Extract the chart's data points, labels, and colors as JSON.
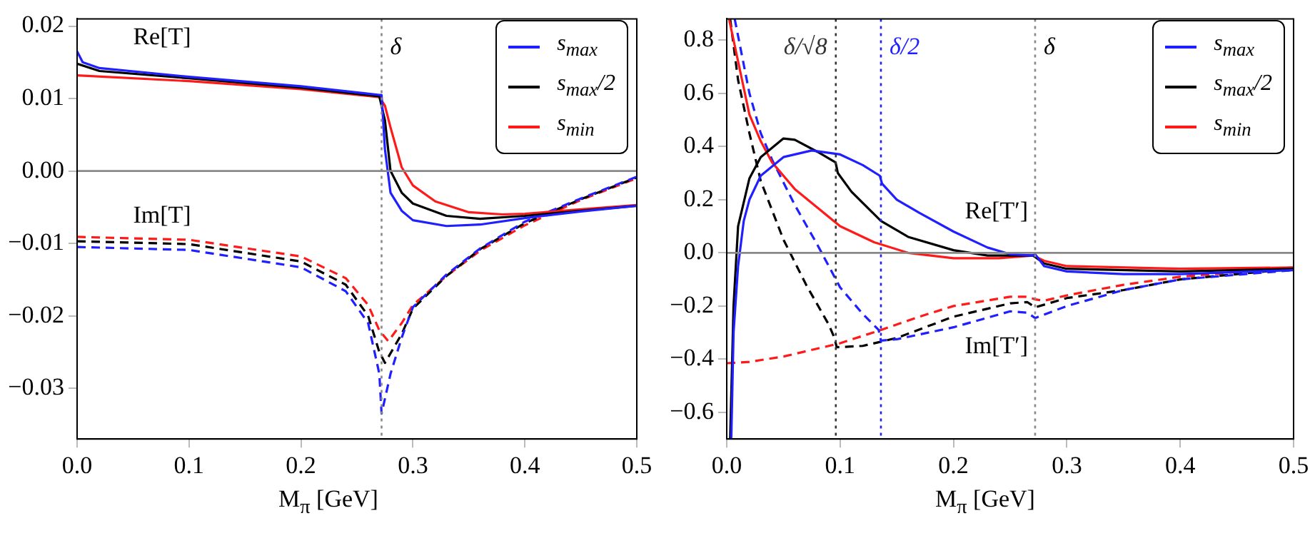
{
  "chart_data": [
    {
      "type": "line",
      "xlabel": "M$_{π}$ [GeV]",
      "xlim": [
        0,
        0.5
      ],
      "xticks": [
        {
          "value": 0,
          "label": "0.0"
        },
        0.1,
        0.2,
        0.3,
        0.4,
        0.5
      ],
      "ylim": [
        -0.037,
        0.021
      ],
      "yticks": [
        {
          "value": -0.03,
          "label": "−0.03"
        },
        {
          "value": -0.02,
          "label": "−0.02"
        },
        {
          "value": -0.01,
          "label": "−0.01"
        },
        {
          "value": 0,
          "label": "0.00"
        },
        {
          "value": 0.01,
          "label": "0.01"
        },
        {
          "value": 0.02,
          "label": "0.02"
        }
      ],
      "grid": false,
      "legend": "top right",
      "marker": "none",
      "annotations": [
        "Re[T]",
        "Im[T]"
      ],
      "ref_lines": [
        {
          "axis": "x",
          "value": 0.272,
          "label": "δ",
          "color": "#888888",
          "line_style": "dotted"
        },
        {
          "axis": "y",
          "value": 0,
          "color": "#888888",
          "line_style": "solid"
        }
      ],
      "series": [
        {
          "name": "s$_{max}$",
          "color": "#1f1fff",
          "line_style": "solid",
          "x": [
            0,
            0.005,
            0.02,
            0.1,
            0.2,
            0.27,
            0.272,
            0.275,
            0.28,
            0.29,
            0.3,
            0.33,
            0.36,
            0.4,
            0.45,
            0.5
          ],
          "values": [
            0.0165,
            0.015,
            0.0142,
            0.013,
            0.0117,
            0.0105,
            0.0105,
            0.003,
            -0.003,
            -0.0055,
            -0.0068,
            -0.0076,
            -0.0074,
            -0.0065,
            -0.0056,
            -0.0048
          ]
        },
        {
          "name": "s$_{max}$/2",
          "color": "#000000",
          "line_style": "solid",
          "x": [
            0,
            0.02,
            0.1,
            0.2,
            0.27,
            0.275,
            0.28,
            0.29,
            0.3,
            0.33,
            0.36,
            0.4,
            0.45,
            0.5
          ],
          "values": [
            0.0148,
            0.0138,
            0.0128,
            0.0115,
            0.0103,
            0.007,
            0,
            -0.003,
            -0.0045,
            -0.0062,
            -0.0066,
            -0.0062,
            -0.0055,
            -0.0048
          ]
        },
        {
          "name": "s$_{min}$",
          "color": "#ff1a1a",
          "line_style": "solid",
          "x": [
            0,
            0.1,
            0.2,
            0.27,
            0.275,
            0.28,
            0.29,
            0.3,
            0.32,
            0.35,
            0.38,
            0.4,
            0.45,
            0.5
          ],
          "values": [
            0.0132,
            0.0124,
            0.0113,
            0.0102,
            0.009,
            0.006,
            0.0005,
            -0.002,
            -0.0042,
            -0.0057,
            -0.006,
            -0.0059,
            -0.0053,
            -0.0047
          ]
        },
        {
          "color": "#1f1fff",
          "line_style": "dashed",
          "x": [
            0,
            0.1,
            0.2,
            0.24,
            0.26,
            0.27,
            0.272,
            0.28,
            0.29,
            0.3,
            0.33,
            0.36,
            0.4,
            0.45,
            0.5
          ],
          "values": [
            -0.0105,
            -0.0109,
            -0.0133,
            -0.0166,
            -0.021,
            -0.028,
            -0.0335,
            -0.028,
            -0.023,
            -0.0188,
            -0.0143,
            -0.0107,
            -0.007,
            -0.0038,
            -0.0008
          ]
        },
        {
          "color": "#000000",
          "line_style": "dashed",
          "x": [
            0,
            0.1,
            0.2,
            0.24,
            0.26,
            0.27,
            0.275,
            0.29,
            0.3,
            0.33,
            0.36,
            0.4,
            0.45,
            0.5
          ],
          "values": [
            -0.0097,
            -0.0101,
            -0.0125,
            -0.0157,
            -0.02,
            -0.025,
            -0.0265,
            -0.0225,
            -0.019,
            -0.0145,
            -0.0108,
            -0.0072,
            -0.0039,
            -0.0009
          ]
        },
        {
          "color": "#ff1a1a",
          "line_style": "dashed",
          "x": [
            0,
            0.1,
            0.2,
            0.24,
            0.26,
            0.27,
            0.278,
            0.29,
            0.3,
            0.33,
            0.36,
            0.4,
            0.45,
            0.5
          ],
          "values": [
            -0.0091,
            -0.0095,
            -0.0118,
            -0.0148,
            -0.0185,
            -0.022,
            -0.0235,
            -0.021,
            -0.0185,
            -0.0145,
            -0.011,
            -0.0075,
            -0.004,
            -0.001
          ]
        }
      ]
    },
    {
      "type": "line",
      "xlabel": "M$_{π}$ [GeV]",
      "xlim": [
        0,
        0.5
      ],
      "xticks": [
        {
          "value": 0,
          "label": "0.0"
        },
        0.1,
        0.2,
        0.3,
        0.4,
        0.5
      ],
      "ylim": [
        -0.7,
        0.88
      ],
      "yticks": [
        {
          "value": -0.6,
          "label": "−0.6"
        },
        {
          "value": -0.4,
          "label": "−0.4"
        },
        {
          "value": -0.2,
          "label": "−0.2"
        },
        {
          "value": 0,
          "label": "0.0"
        },
        0.2,
        0.4,
        0.6,
        0.8
      ],
      "grid": false,
      "legend": "top right",
      "marker": "none",
      "annotations": [
        "Re[T′]",
        "Im[T′]"
      ],
      "ref_lines": [
        {
          "axis": "x",
          "value": 0.0962,
          "label": "δ/√8",
          "color": "#333333",
          "line_style": "dotted"
        },
        {
          "axis": "x",
          "value": 0.136,
          "label": "δ/2",
          "color": "#1f1fff",
          "line_style": "dotted"
        },
        {
          "axis": "x",
          "value": 0.272,
          "label": "δ",
          "color": "#888888",
          "line_style": "dotted"
        },
        {
          "axis": "y",
          "value": 0,
          "color": "#888888",
          "line_style": "solid"
        }
      ],
      "series": [
        {
          "name": "s$_{max}$",
          "color": "#1f1fff",
          "line_style": "solid",
          "x": [
            0.004,
            0.006,
            0.01,
            0.015,
            0.02,
            0.03,
            0.05,
            0.075,
            0.1,
            0.12,
            0.135,
            0.137,
            0.15,
            0.17,
            0.2,
            0.23,
            0.25,
            0.27,
            0.272,
            0.28,
            0.3,
            0.35,
            0.4,
            0.5
          ],
          "values": [
            -0.7,
            -0.3,
            -0.05,
            0.12,
            0.2,
            0.29,
            0.36,
            0.385,
            0.37,
            0.33,
            0.29,
            0.26,
            0.2,
            0.15,
            0.08,
            0.02,
            -0.005,
            -0.01,
            -0.005,
            -0.05,
            -0.07,
            -0.08,
            -0.08,
            -0.065
          ]
        },
        {
          "name": "s$_{max}$/2",
          "color": "#000000",
          "line_style": "solid",
          "x": [
            0.003,
            0.006,
            0.01,
            0.02,
            0.03,
            0.05,
            0.06,
            0.08,
            0.096,
            0.098,
            0.11,
            0.136,
            0.16,
            0.2,
            0.23,
            0.27,
            0.28,
            0.3,
            0.4,
            0.5
          ],
          "values": [
            -0.7,
            -0.2,
            0.1,
            0.28,
            0.36,
            0.43,
            0.425,
            0.38,
            0.34,
            0.3,
            0.23,
            0.12,
            0.06,
            0.01,
            -0.01,
            -0.01,
            -0.04,
            -0.06,
            -0.07,
            -0.06
          ]
        },
        {
          "name": "s$_{min}$",
          "color": "#ff1a1a",
          "line_style": "solid",
          "x": [
            0.002,
            0.01,
            0.02,
            0.03,
            0.04,
            0.06,
            0.08,
            0.1,
            0.13,
            0.16,
            0.2,
            0.24,
            0.27,
            0.28,
            0.3,
            0.4,
            0.5
          ],
          "values": [
            0.88,
            0.72,
            0.52,
            0.42,
            0.34,
            0.24,
            0.17,
            0.1,
            0.04,
            0,
            -0.02,
            -0.02,
            -0.01,
            -0.03,
            -0.05,
            -0.06,
            -0.055
          ]
        },
        {
          "color": "#1f1fff",
          "line_style": "dashed",
          "x": [
            0.007,
            0.02,
            0.03,
            0.04,
            0.06,
            0.08,
            0.1,
            0.12,
            0.134,
            0.136,
            0.15,
            0.2,
            0.25,
            0.265,
            0.272,
            0.3,
            0.35,
            0.4,
            0.5
          ],
          "values": [
            0.88,
            0.6,
            0.45,
            0.35,
            0.18,
            0.03,
            -0.13,
            -0.23,
            -0.29,
            -0.33,
            -0.325,
            -0.28,
            -0.22,
            -0.225,
            -0.245,
            -0.2,
            -0.14,
            -0.1,
            -0.065
          ]
        },
        {
          "color": "#000000",
          "line_style": "dashed",
          "x": [
            0.003,
            0.01,
            0.02,
            0.03,
            0.05,
            0.07,
            0.09,
            0.095,
            0.097,
            0.12,
            0.15,
            0.2,
            0.25,
            0.265,
            0.272,
            0.3,
            0.35,
            0.4,
            0.5
          ],
          "values": [
            0.88,
            0.65,
            0.45,
            0.27,
            0.05,
            -0.12,
            -0.27,
            -0.32,
            -0.355,
            -0.35,
            -0.32,
            -0.24,
            -0.19,
            -0.185,
            -0.205,
            -0.17,
            -0.14,
            -0.1,
            -0.06
          ]
        },
        {
          "color": "#ff1a1a",
          "line_style": "dashed",
          "x": [
            0,
            0.02,
            0.05,
            0.08,
            0.1,
            0.136,
            0.17,
            0.2,
            0.25,
            0.265,
            0.272,
            0.28,
            0.3,
            0.35,
            0.4,
            0.5
          ],
          "values": [
            -0.415,
            -0.41,
            -0.39,
            -0.36,
            -0.34,
            -0.29,
            -0.24,
            -0.2,
            -0.165,
            -0.165,
            -0.175,
            -0.18,
            -0.16,
            -0.12,
            -0.09,
            -0.055
          ]
        }
      ]
    }
  ]
}
